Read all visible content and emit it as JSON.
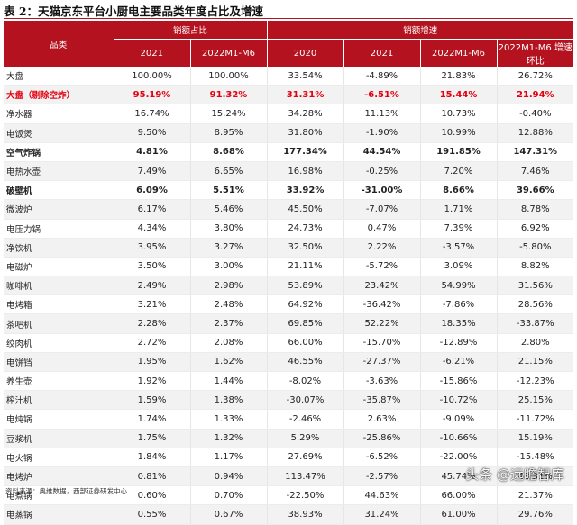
{
  "title": "表 2：天猫京东平台小厨电主要品类年度占比及增速",
  "header": {
    "category": "品类",
    "group_share": "销额占比",
    "group_growth": "销额增速",
    "sub": [
      "2021",
      "2022M1-M6",
      "2020",
      "2021",
      "2022M1-M6",
      "2022M1-M6 增速环比"
    ]
  },
  "colors": {
    "accent": "#b3121e",
    "highlight_red": "#e3000f"
  },
  "rows": [
    {
      "name": "大盘",
      "v": [
        "100.00%",
        "100.00%",
        "33.54%",
        "-4.89%",
        "21.83%",
        "26.72%"
      ],
      "style": "normal"
    },
    {
      "name": "大盘（剔除空炸）",
      "v": [
        "95.19%",
        "91.32%",
        "31.31%",
        "-6.51%",
        "15.44%",
        "21.94%"
      ],
      "style": "red"
    },
    {
      "name": "净水器",
      "v": [
        "16.74%",
        "15.24%",
        "34.28%",
        "11.13%",
        "10.73%",
        "-0.40%"
      ],
      "style": "normal"
    },
    {
      "name": "电饭煲",
      "v": [
        "9.50%",
        "8.95%",
        "31.80%",
        "-1.90%",
        "10.99%",
        "12.88%"
      ],
      "style": "normal"
    },
    {
      "name": "空气炸锅",
      "v": [
        "4.81%",
        "8.68%",
        "177.34%",
        "44.54%",
        "191.85%",
        "147.31%"
      ],
      "style": "bold"
    },
    {
      "name": "电热水壶",
      "v": [
        "7.49%",
        "6.65%",
        "16.98%",
        "-0.25%",
        "7.20%",
        "7.46%"
      ],
      "style": "normal"
    },
    {
      "name": "破壁机",
      "v": [
        "6.09%",
        "5.51%",
        "33.92%",
        "-31.00%",
        "8.66%",
        "39.66%"
      ],
      "style": "bold"
    },
    {
      "name": "微波炉",
      "v": [
        "6.17%",
        "5.46%",
        "45.50%",
        "-7.07%",
        "1.71%",
        "8.78%"
      ],
      "style": "normal"
    },
    {
      "name": "电压力锅",
      "v": [
        "4.34%",
        "3.80%",
        "24.73%",
        "0.47%",
        "7.39%",
        "6.92%"
      ],
      "style": "normal"
    },
    {
      "name": "净饮机",
      "v": [
        "3.95%",
        "3.27%",
        "32.50%",
        "2.22%",
        "-3.57%",
        "-5.80%"
      ],
      "style": "normal"
    },
    {
      "name": "电磁炉",
      "v": [
        "3.50%",
        "3.00%",
        "21.11%",
        "-5.72%",
        "3.09%",
        "8.82%"
      ],
      "style": "normal"
    },
    {
      "name": "咖啡机",
      "v": [
        "2.49%",
        "2.98%",
        "53.89%",
        "23.42%",
        "54.99%",
        "31.56%"
      ],
      "style": "normal"
    },
    {
      "name": "电烤箱",
      "v": [
        "3.21%",
        "2.48%",
        "64.92%",
        "-36.42%",
        "-7.86%",
        "28.56%"
      ],
      "style": "normal"
    },
    {
      "name": "茶吧机",
      "v": [
        "2.28%",
        "2.37%",
        "69.85%",
        "52.22%",
        "18.35%",
        "-33.87%"
      ],
      "style": "normal"
    },
    {
      "name": "绞肉机",
      "v": [
        "2.72%",
        "2.08%",
        "66.00%",
        "-15.70%",
        "-12.89%",
        "2.80%"
      ],
      "style": "normal"
    },
    {
      "name": "电饼铛",
      "v": [
        "1.95%",
        "1.62%",
        "46.55%",
        "-27.37%",
        "-6.21%",
        "21.15%"
      ],
      "style": "normal"
    },
    {
      "name": "养生壶",
      "v": [
        "1.92%",
        "1.44%",
        "-8.02%",
        "-3.63%",
        "-15.86%",
        "-12.23%"
      ],
      "style": "normal"
    },
    {
      "name": "榨汁机",
      "v": [
        "1.59%",
        "1.38%",
        "-30.07%",
        "-35.87%",
        "-10.72%",
        "25.15%"
      ],
      "style": "normal"
    },
    {
      "name": "电炖锅",
      "v": [
        "1.74%",
        "1.33%",
        "-2.46%",
        "2.63%",
        "-9.09%",
        "-11.72%"
      ],
      "style": "normal"
    },
    {
      "name": "豆浆机",
      "v": [
        "1.75%",
        "1.32%",
        "5.29%",
        "-25.86%",
        "-10.66%",
        "15.19%"
      ],
      "style": "normal"
    },
    {
      "name": "电火锅",
      "v": [
        "1.84%",
        "1.17%",
        "27.69%",
        "-6.52%",
        "-22.00%",
        "-15.48%"
      ],
      "style": "normal"
    },
    {
      "name": "电烤炉",
      "v": [
        "0.81%",
        "0.94%",
        "113.47%",
        "-2.57%",
        "45.74%",
        "48.31%"
      ],
      "style": "normal"
    },
    {
      "name": "电煮锅",
      "v": [
        "0.60%",
        "0.70%",
        "-22.50%",
        "44.63%",
        "66.00%",
        "21.37%"
      ],
      "style": "normal"
    },
    {
      "name": "电蒸锅",
      "v": [
        "0.55%",
        "0.67%",
        "38.93%",
        "31.24%",
        "61.00%",
        "29.76%"
      ],
      "style": "normal"
    }
  ],
  "source": "资料来源：奥维数据，西部证券研发中心",
  "watermark": "头条 @远瞻智库"
}
